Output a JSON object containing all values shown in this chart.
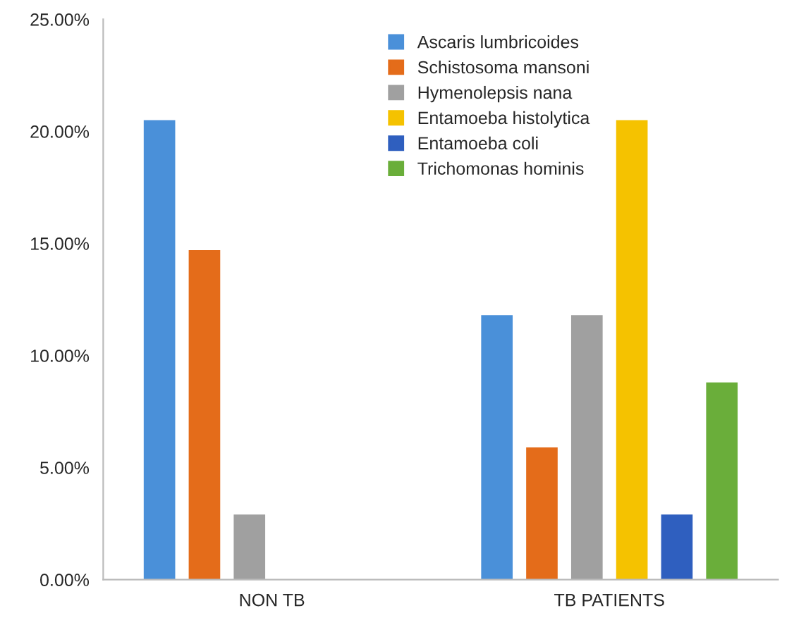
{
  "chart_data": {
    "type": "bar",
    "categories": [
      "NON TB",
      "TB PATIENTS"
    ],
    "series": [
      {
        "name": "Ascaris lumbricoides",
        "color": "#4a90d9",
        "values": [
          20.5,
          11.8
        ]
      },
      {
        "name": "Schistosoma mansoni",
        "color": "#e46c1a",
        "values": [
          14.7,
          5.9
        ]
      },
      {
        "name": "Hymenolepsis nana",
        "color": "#a0a0a0",
        "values": [
          2.9,
          11.8
        ]
      },
      {
        "name": "Entamoeba histolytica",
        "color": "#f5c200",
        "values": [
          null,
          20.5
        ]
      },
      {
        "name": "Entamoeba coli",
        "color": "#2f5fbf",
        "values": [
          null,
          2.9
        ]
      },
      {
        "name": "Trichomonas hominis",
        "color": "#6aae3a",
        "values": [
          null,
          8.8
        ]
      }
    ],
    "ylim": [
      0,
      25
    ],
    "yticks": [
      {
        "value": 0,
        "label": "0.00%"
      },
      {
        "value": 5,
        "label": "5.00%"
      },
      {
        "value": 10,
        "label": "10.00%"
      },
      {
        "value": 15,
        "label": "15.00%"
      },
      {
        "value": 20,
        "label": "20.00%"
      },
      {
        "value": 25,
        "label": "25.00%"
      }
    ],
    "grid": false,
    "legend": "top"
  }
}
